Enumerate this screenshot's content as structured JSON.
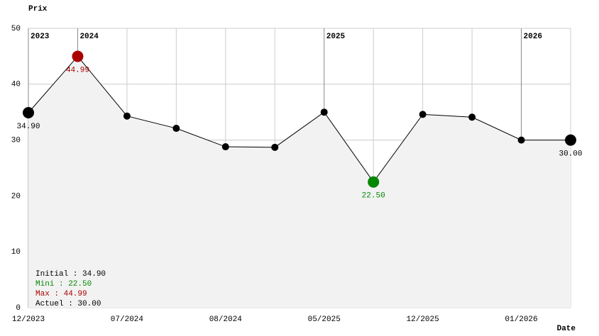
{
  "chart_data": {
    "type": "line",
    "y_label": "Prix",
    "x_label": "Date",
    "categories": [
      "12/2023",
      null,
      "07/2024",
      null,
      "08/2024",
      null,
      "05/2025",
      null,
      "12/2025",
      null,
      "01/2026",
      null
    ],
    "year_labels": [
      "2023",
      "2024",
      null,
      null,
      null,
      null,
      "2025",
      null,
      null,
      null,
      "2026",
      null
    ],
    "values": [
      34.9,
      44.99,
      34.3,
      32.1,
      28.8,
      28.7,
      35.0,
      22.5,
      34.6,
      34.1,
      30.0,
      30.0
    ],
    "value_labels": [
      "34.90",
      "44.99",
      null,
      null,
      null,
      null,
      null,
      "22.50",
      null,
      null,
      null,
      "30.00"
    ],
    "color": "#000000",
    "max_color": "#aa0000",
    "min_color": "#008800",
    "fill_color": "#f2f2f2",
    "ylim": [
      0,
      50
    ],
    "yticks": [
      0,
      10,
      20,
      30,
      40,
      50
    ],
    "grid": true,
    "summary": [
      {
        "text": "Initial : 34.90",
        "color": "#000000"
      },
      {
        "text": "Mini : 22.50",
        "color": "#008800"
      },
      {
        "text": "Max : 44.99",
        "color": "#aa0000"
      },
      {
        "text": "Actuel : 30.00",
        "color": "#000000"
      }
    ]
  }
}
